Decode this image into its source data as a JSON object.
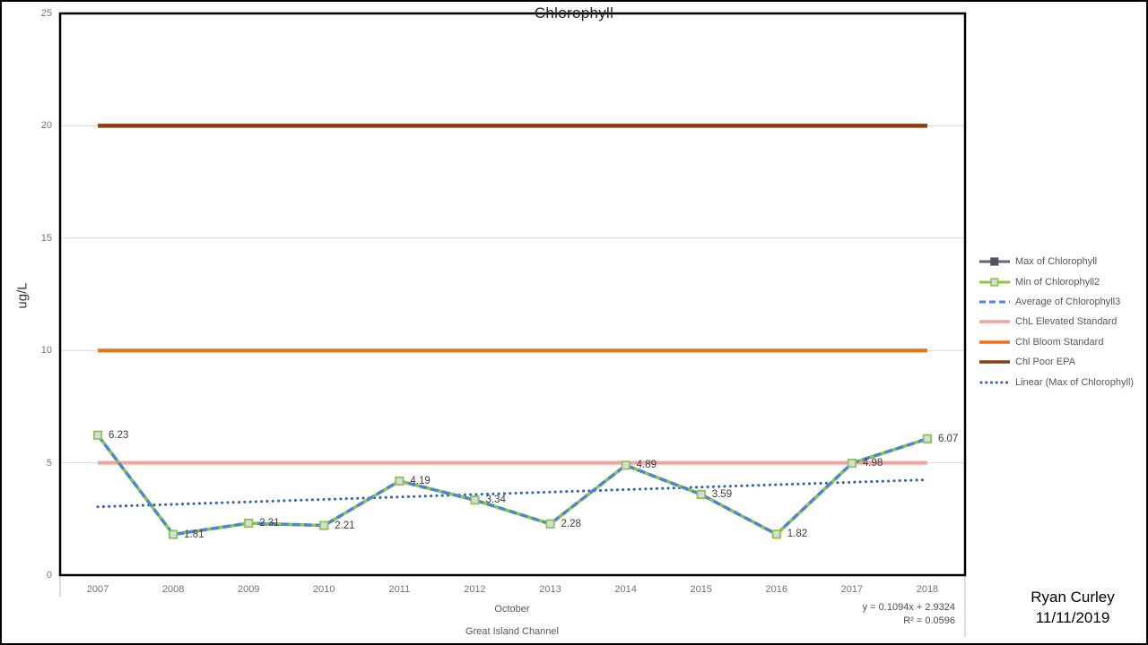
{
  "chart_data": {
    "type": "line",
    "title": "Chlorophyll",
    "ylabel": "ug/L",
    "ylim": [
      0,
      25
    ],
    "yticks": [
      0,
      5,
      10,
      15,
      20,
      25
    ],
    "grid": "horizontal",
    "legend_position": "right",
    "categories": [
      "2007",
      "2008",
      "2009",
      "2010",
      "2011",
      "2012",
      "2013",
      "2014",
      "2015",
      "2016",
      "2017",
      "2018"
    ],
    "values": [
      6.23,
      1.81,
      2.31,
      2.21,
      4.19,
      3.34,
      2.28,
      4.89,
      3.59,
      1.82,
      4.98,
      6.07
    ],
    "data_labels": [
      "6.23",
      "1.81",
      "2.31",
      "2.21",
      "4.19",
      "3.34",
      "2.28",
      "4.89",
      "3.59",
      "1.82",
      "4.98",
      "6.07"
    ],
    "series": [
      {
        "name": "Max of Chlorophyll",
        "kind": "line-marker",
        "color": "#6C6175",
        "marker_fill": "#57505E",
        "marker_stroke": "#57505E",
        "uses": "values"
      },
      {
        "name": "Min of Chlorophyll2",
        "kind": "line-marker",
        "color": "#8DC63F",
        "marker_fill": "#D5DBE7",
        "marker_stroke": "#8DC63F",
        "uses": "values"
      },
      {
        "name": "Average of Chlorophyll3",
        "kind": "line-dashed",
        "color": "#4A86D8",
        "uses": "values"
      },
      {
        "name": "ChL Elevated Standard",
        "kind": "hline",
        "color": "#F8A19B",
        "value": 5
      },
      {
        "name": "Chl Bloom Standard",
        "kind": "hline",
        "color": "#ED7014",
        "value": 10
      },
      {
        "name": "Chl Poor EPA",
        "kind": "hline",
        "color": "#8B3E0B",
        "value": 20
      },
      {
        "name": "Linear (Max of Chlorophyll)",
        "kind": "line-dotted",
        "color": "#3060B2",
        "trend": {
          "slope": 0.1094,
          "intercept": 2.9324
        }
      }
    ],
    "trendline_label": {
      "equation": "y = 0.1094x + 2.9324",
      "r2": "R² = 0.0596"
    },
    "xaxis_title_lines": [
      "October",
      "Great Island Channel"
    ],
    "colors": {
      "gridline": "#D9D9D9",
      "axis": "#000000",
      "tick_text": "#737373",
      "end_tick": "#BFBFBF"
    }
  },
  "annotation": {
    "author": "Ryan Curley",
    "date": "11/11/2019"
  }
}
